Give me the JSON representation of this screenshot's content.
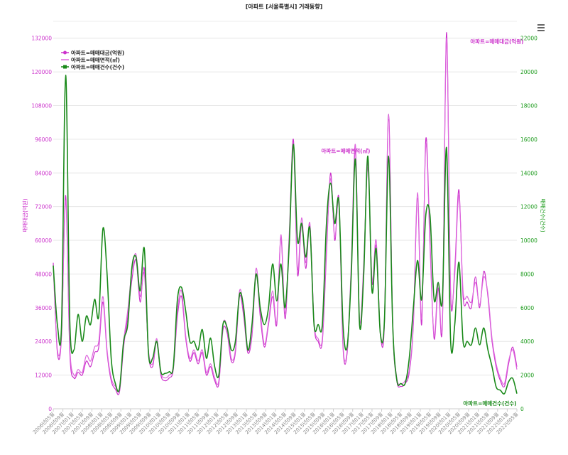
{
  "chart_data": {
    "type": "line",
    "title": "[아파트 [서울특별시] 거래동향]",
    "y_left_label": "매매대금(억원)",
    "y_right_label": "매매건수(건수)",
    "y_left_range": [
      0,
      138000
    ],
    "y_right_range": [
      0,
      23000
    ],
    "y_left_ticks": [
      "0",
      "12000",
      "24000",
      "36000",
      "48000",
      "60000",
      "72000",
      "84000",
      "96000",
      "108000",
      "120000",
      "132000"
    ],
    "y_right_ticks": [
      "0",
      "2000",
      "4000",
      "6000",
      "8000",
      "10000",
      "12000",
      "14000",
      "16000",
      "18000",
      "20000",
      "22000"
    ],
    "x_tick_labels": [
      "2006년05월",
      "2006년09월",
      "2007년01월",
      "2007년05월",
      "2007년09월",
      "2008년01월",
      "2008년05월",
      "2008년09월",
      "2009년01월",
      "2009년05월",
      "2009년09월",
      "2010년01월",
      "2010년05월",
      "2010년09월",
      "2011년01월",
      "2011년05월",
      "2011년09월",
      "2012년01월",
      "2012년05월",
      "2012년09월",
      "2013년01월",
      "2013년05월",
      "2013년09월",
      "2014년01월",
      "2014년05월",
      "2014년09월",
      "2015년01월",
      "2015년05월",
      "2015년09월",
      "2016년01월",
      "2016년05월",
      "2016년09월",
      "2017년01월",
      "2017년05월",
      "2017년09월",
      "2018년01월",
      "2018년05월",
      "2018년09월",
      "2019년01월",
      "2019년05월",
      "2019년09월",
      "2020년01월",
      "2020년05월",
      "2020년09월",
      "2021년01월",
      "2021년05월",
      "2021년09월",
      "2022년01월",
      "2022년05월"
    ],
    "legend": {
      "position": "top-left",
      "entries": [
        "아파트=매매대금(억원)",
        "아파트=매매면적(㎡)",
        "아파트=매매건수(건수)"
      ]
    },
    "annotations": {
      "amount": "아파트=매매대금(억원)",
      "area": "아파트=매매면적(㎡)",
      "count": "아파트=매매건수(건수)"
    },
    "grid": true,
    "colors": {
      "amount": "#cc33cc",
      "area": "#dd66dd",
      "count": "#1a8a1a"
    },
    "series": [
      {
        "name": "아파트=매매대금(억원)",
        "axis": "left",
        "values": [
          52000,
          20000,
          26000,
          76000,
          20000,
          11000,
          13000,
          12000,
          17000,
          15000,
          20000,
          22000,
          38000,
          20000,
          10000,
          7000,
          6000,
          22000,
          33000,
          46000,
          53000,
          38000,
          50000,
          20000,
          15000,
          24000,
          12000,
          10000,
          11000,
          14000,
          33000,
          40000,
          25000,
          17000,
          20000,
          16000,
          20000,
          12000,
          15000,
          10000,
          9000,
          28000,
          27000,
          17000,
          20000,
          40000,
          33000,
          20000,
          26000,
          48000,
          33000,
          22000,
          30000,
          40000,
          30000,
          61000,
          32000,
          60000,
          96000,
          48000,
          66000,
          50000,
          65000,
          30000,
          24000,
          24000,
          55000,
          84000,
          60000,
          75000,
          22000,
          20000,
          50000,
          92000,
          30000,
          50000,
          88000,
          45000,
          58000,
          27000,
          30000,
          105000,
          30000,
          10000,
          8000,
          9000,
          13000,
          30000,
          75000,
          30000,
          96000,
          60000,
          25000,
          43000,
          30000,
          134000,
          40000,
          50000,
          78000,
          40000,
          38000,
          36000,
          47000,
          36000,
          49000,
          40000,
          24000,
          15000,
          10000,
          8000,
          16000,
          22000,
          15000
        ]
      },
      {
        "name": "아파트=매매면적(㎡)",
        "axis": "left",
        "values": [
          51000,
          21000,
          27000,
          74000,
          22000,
          12000,
          14000,
          13000,
          19000,
          17000,
          22000,
          24000,
          40000,
          21000,
          11000,
          8000,
          7000,
          24000,
          35000,
          49000,
          55000,
          40000,
          48000,
          21000,
          16000,
          25000,
          13000,
          11000,
          12000,
          15000,
          35000,
          42000,
          26000,
          18000,
          21000,
          17000,
          21000,
          13000,
          16000,
          11000,
          10000,
          30000,
          29000,
          18000,
          21000,
          42000,
          35000,
          21000,
          27000,
          50000,
          35000,
          23000,
          31000,
          42000,
          31000,
          62000,
          34000,
          62000,
          94000,
          50000,
          68000,
          52000,
          66000,
          31000,
          25000,
          25000,
          57000,
          82000,
          61000,
          73000,
          23000,
          21000,
          52000,
          94000,
          32000,
          52000,
          86000,
          46000,
          60000,
          28000,
          31000,
          103000,
          31000,
          11000,
          9000,
          10000,
          14000,
          31000,
          77000,
          32000,
          94000,
          58000,
          26000,
          45000,
          31000,
          132000,
          42000,
          48000,
          76000,
          42000,
          40000,
          38000,
          45000,
          37000,
          47000,
          41000,
          25000,
          16000,
          11000,
          9000,
          17000,
          21000,
          14000
        ]
      },
      {
        "name": "아파트=매매건수(건수)",
        "axis": "right",
        "values": [
          8500,
          5000,
          5000,
          19800,
          5200,
          3500,
          5600,
          4000,
          5500,
          5000,
          6500,
          5500,
          10700,
          8000,
          3000,
          1500,
          1200,
          4000,
          5000,
          8400,
          9000,
          7000,
          9500,
          3300,
          3000,
          4000,
          2200,
          2100,
          2200,
          2500,
          6500,
          7200,
          5800,
          4000,
          4000,
          3500,
          4700,
          3000,
          4200,
          2500,
          2000,
          5000,
          4800,
          3500,
          4000,
          6800,
          6000,
          3500,
          5000,
          8000,
          6000,
          5000,
          6000,
          8600,
          6400,
          8600,
          6000,
          9700,
          15700,
          10000,
          11000,
          9000,
          10700,
          5000,
          5000,
          5000,
          11000,
          13400,
          11000,
          12300,
          5000,
          3700,
          8000,
          14800,
          5000,
          8000,
          15000,
          7000,
          9500,
          4500,
          5200,
          15000,
          5000,
          1700,
          1500,
          1500,
          3000,
          6000,
          8800,
          6500,
          11500,
          11500,
          6500,
          7500,
          6500,
          15500,
          4000,
          5000,
          8700,
          4000,
          4000,
          3800,
          4800,
          3800,
          4800,
          3500,
          2500,
          1300,
          1100,
          900,
          1600,
          1800,
          900
        ]
      }
    ]
  }
}
